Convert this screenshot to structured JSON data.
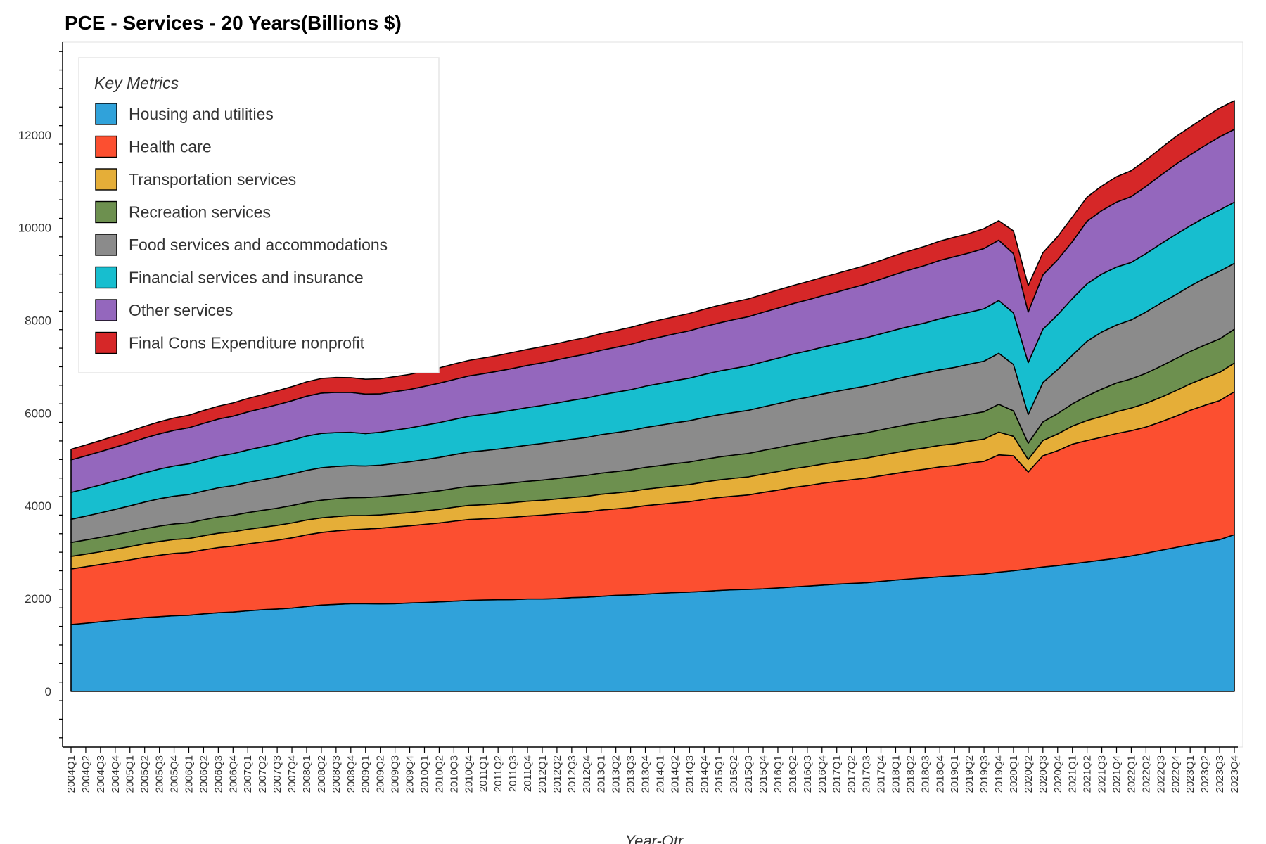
{
  "chart_data": {
    "type": "area",
    "stacked": true,
    "title": "PCE - Services - 20 Years(Billions $)",
    "xlabel": "Year-Qtr",
    "ylabel": "",
    "ylim": [
      -1200,
      14000
    ],
    "yticks": [
      0,
      2000,
      4000,
      6000,
      8000,
      10000,
      12000
    ],
    "legend": {
      "title": "Key Metrics",
      "placement": "top-left"
    },
    "grid": false,
    "x": [
      "2004Q1",
      "2004Q2",
      "2004Q3",
      "2004Q4",
      "2005Q1",
      "2005Q2",
      "2005Q3",
      "2005Q4",
      "2006Q1",
      "2006Q2",
      "2006Q3",
      "2006Q4",
      "2007Q1",
      "2007Q2",
      "2007Q3",
      "2007Q4",
      "2008Q1",
      "2008Q2",
      "2008Q3",
      "2008Q4",
      "2009Q1",
      "2009Q2",
      "2009Q3",
      "2009Q4",
      "2010Q1",
      "2010Q2",
      "2010Q3",
      "2010Q4",
      "2011Q1",
      "2011Q2",
      "2011Q3",
      "2011Q4",
      "2012Q1",
      "2012Q2",
      "2012Q3",
      "2012Q4",
      "2013Q1",
      "2013Q2",
      "2013Q3",
      "2013Q4",
      "2014Q1",
      "2014Q2",
      "2014Q3",
      "2014Q4",
      "2015Q1",
      "2015Q2",
      "2015Q3",
      "2015Q4",
      "2016Q1",
      "2016Q2",
      "2016Q3",
      "2016Q4",
      "2017Q1",
      "2017Q2",
      "2017Q3",
      "2017Q4",
      "2018Q1",
      "2018Q2",
      "2018Q3",
      "2018Q4",
      "2019Q1",
      "2019Q2",
      "2019Q3",
      "2019Q4",
      "2020Q1",
      "2020Q2",
      "2020Q3",
      "2020Q4",
      "2021Q1",
      "2021Q2",
      "2021Q3",
      "2021Q4",
      "2022Q1",
      "2022Q2",
      "2022Q3",
      "2022Q4",
      "2023Q1",
      "2023Q2",
      "2023Q3",
      "2023Q4"
    ],
    "series": [
      {
        "name": "Housing and utilities",
        "color": "#30a2da",
        "values": [
          1440,
          1467,
          1500,
          1530,
          1560,
          1590,
          1610,
          1630,
          1640,
          1670,
          1695,
          1710,
          1735,
          1760,
          1775,
          1795,
          1830,
          1860,
          1875,
          1890,
          1890,
          1885,
          1890,
          1905,
          1915,
          1930,
          1945,
          1960,
          1970,
          1975,
          1980,
          1990,
          1990,
          2000,
          2020,
          2030,
          2050,
          2070,
          2080,
          2095,
          2115,
          2130,
          2140,
          2155,
          2175,
          2190,
          2200,
          2210,
          2230,
          2250,
          2270,
          2290,
          2310,
          2325,
          2340,
          2370,
          2400,
          2425,
          2445,
          2470,
          2490,
          2510,
          2530,
          2570,
          2600,
          2640,
          2680,
          2710,
          2750,
          2790,
          2830,
          2870,
          2920,
          2980,
          3040,
          3100,
          3160,
          3220,
          3270,
          3380
        ]
      },
      {
        "name": "Health care",
        "color": "#fc4f30",
        "values": [
          1200,
          1220,
          1235,
          1255,
          1275,
          1300,
          1325,
          1345,
          1355,
          1380,
          1405,
          1420,
          1445,
          1460,
          1485,
          1515,
          1545,
          1565,
          1585,
          1595,
          1610,
          1635,
          1655,
          1665,
          1685,
          1700,
          1725,
          1745,
          1750,
          1760,
          1775,
          1790,
          1810,
          1825,
          1830,
          1840,
          1860,
          1865,
          1880,
          1910,
          1920,
          1935,
          1950,
          1985,
          2005,
          2020,
          2035,
          2080,
          2110,
          2145,
          2165,
          2195,
          2215,
          2240,
          2260,
          2280,
          2300,
          2325,
          2345,
          2370,
          2380,
          2410,
          2430,
          2530,
          2480,
          2090,
          2400,
          2480,
          2580,
          2620,
          2650,
          2690,
          2700,
          2720,
          2770,
          2830,
          2900,
          2950,
          3000,
          3080
        ]
      },
      {
        "name": "Transportation services",
        "color": "#e5ae38",
        "values": [
          270,
          272,
          275,
          280,
          285,
          292,
          298,
          300,
          300,
          305,
          310,
          310,
          315,
          318,
          320,
          322,
          320,
          315,
          310,
          305,
          290,
          285,
          285,
          285,
          290,
          295,
          300,
          305,
          305,
          310,
          315,
          320,
          320,
          325,
          330,
          335,
          340,
          345,
          350,
          355,
          360,
          365,
          370,
          375,
          380,
          385,
          390,
          395,
          400,
          405,
          410,
          415,
          420,
          425,
          430,
          440,
          450,
          455,
          460,
          465,
          470,
          475,
          480,
          490,
          420,
          270,
          330,
          360,
          390,
          430,
          450,
          470,
          490,
          510,
          530,
          550,
          570,
          590,
          610,
          620
        ]
      },
      {
        "name": "Recreation services",
        "color": "#6d904f",
        "values": [
          300,
          305,
          310,
          315,
          320,
          325,
          330,
          335,
          340,
          345,
          350,
          355,
          360,
          365,
          370,
          375,
          380,
          382,
          384,
          386,
          390,
          392,
          394,
          396,
          398,
          400,
          405,
          410,
          415,
          420,
          425,
          430,
          435,
          440,
          445,
          450,
          455,
          460,
          465,
          470,
          475,
          480,
          485,
          490,
          495,
          500,
          505,
          510,
          515,
          520,
          525,
          530,
          535,
          540,
          545,
          550,
          555,
          560,
          565,
          570,
          575,
          580,
          590,
          600,
          550,
          350,
          400,
          440,
          480,
          530,
          590,
          620,
          630,
          650,
          670,
          690,
          700,
          710,
          720,
          730
        ]
      },
      {
        "name": "Food services and accommodations",
        "color": "#8b8b8b",
        "values": [
          500,
          515,
          530,
          545,
          560,
          575,
          590,
          600,
          610,
          620,
          630,
          640,
          650,
          660,
          670,
          680,
          690,
          700,
          695,
          690,
          680,
          680,
          690,
          700,
          710,
          720,
          730,
          740,
          750,
          760,
          770,
          780,
          790,
          800,
          810,
          820,
          830,
          840,
          850,
          860,
          870,
          880,
          890,
          900,
          910,
          920,
          930,
          940,
          950,
          960,
          970,
          980,
          990,
          1000,
          1010,
          1020,
          1030,
          1040,
          1050,
          1060,
          1070,
          1080,
          1090,
          1100,
          1000,
          620,
          850,
          950,
          1050,
          1180,
          1230,
          1250,
          1270,
          1320,
          1360,
          1380,
          1410,
          1440,
          1460,
          1420
        ]
      },
      {
        "name": "Financial services and insurance",
        "color": "#17becf",
        "values": [
          580,
          590,
          600,
          610,
          620,
          630,
          640,
          650,
          660,
          670,
          680,
          690,
          700,
          710,
          720,
          730,
          740,
          740,
          730,
          720,
          700,
          710,
          720,
          730,
          740,
          750,
          760,
          770,
          780,
          790,
          800,
          810,
          820,
          830,
          840,
          850,
          860,
          870,
          880,
          890,
          900,
          910,
          920,
          930,
          940,
          950,
          960,
          970,
          980,
          990,
          1000,
          1010,
          1020,
          1030,
          1040,
          1050,
          1060,
          1070,
          1080,
          1100,
          1120,
          1120,
          1130,
          1140,
          1110,
          1120,
          1150,
          1180,
          1220,
          1240,
          1250,
          1250,
          1240,
          1260,
          1280,
          1300,
          1300,
          1310,
          1320,
          1320
        ]
      },
      {
        "name": "Other services",
        "color": "#9467bd",
        "values": [
          700,
          710,
          720,
          730,
          740,
          750,
          760,
          770,
          780,
          790,
          800,
          810,
          820,
          830,
          840,
          850,
          860,
          870,
          870,
          860,
          850,
          830,
          830,
          830,
          840,
          850,
          860,
          870,
          880,
          890,
          900,
          910,
          920,
          930,
          940,
          950,
          960,
          970,
          980,
          990,
          1000,
          1010,
          1020,
          1030,
          1040,
          1050,
          1060,
          1070,
          1080,
          1090,
          1100,
          1110,
          1120,
          1140,
          1160,
          1180,
          1200,
          1220,
          1240,
          1260,
          1270,
          1280,
          1300,
          1300,
          1280,
          1090,
          1170,
          1190,
          1230,
          1350,
          1370,
          1400,
          1420,
          1450,
          1480,
          1510,
          1530,
          1550,
          1580,
          1570
        ]
      },
      {
        "name": "Final Cons Expenditure nonprofit",
        "color": "#d62728",
        "values": [
          230,
          235,
          240,
          245,
          250,
          255,
          260,
          265,
          270,
          275,
          280,
          285,
          290,
          295,
          300,
          305,
          310,
          315,
          320,
          320,
          320,
          325,
          325,
          325,
          330,
          330,
          335,
          335,
          340,
          340,
          345,
          345,
          350,
          350,
          355,
          355,
          360,
          360,
          365,
          365,
          370,
          370,
          375,
          375,
          380,
          380,
          385,
          385,
          390,
          390,
          395,
          395,
          400,
          400,
          405,
          405,
          410,
          410,
          415,
          415,
          420,
          420,
          430,
          420,
          490,
          570,
          480,
          500,
          530,
          520,
          530,
          550,
          560,
          570,
          580,
          600,
          600,
          610,
          620,
          620
        ]
      }
    ]
  }
}
